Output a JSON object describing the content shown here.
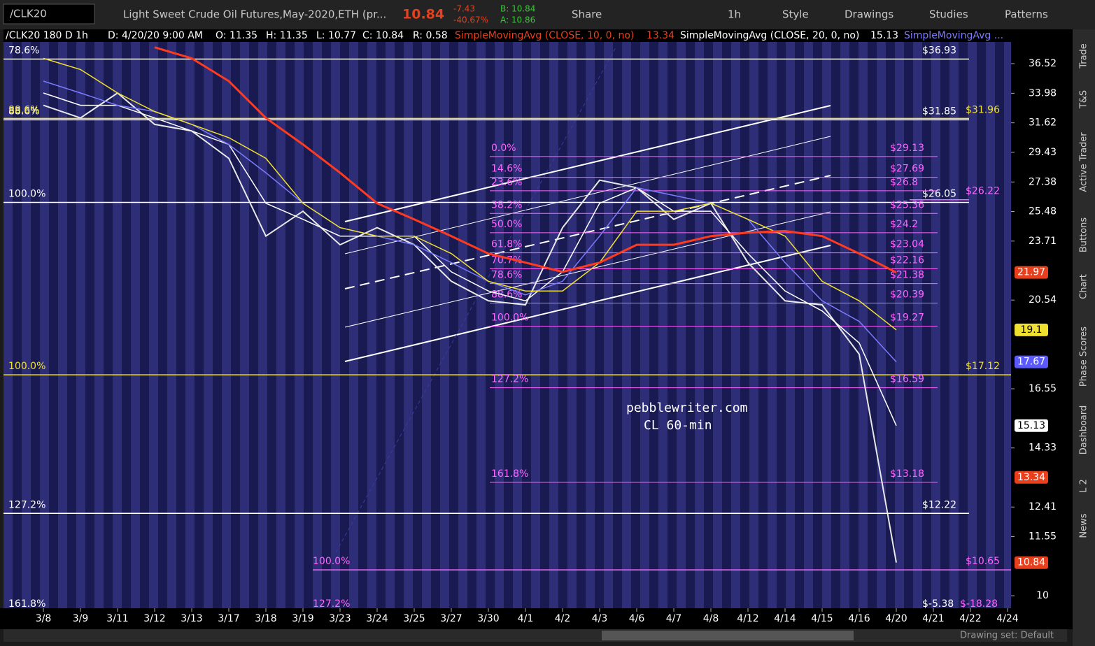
{
  "toolbar": {
    "symbol": "/CLK20",
    "description": "Light Sweet Crude Oil Futures,May-2020,ETH (pr...",
    "last": "10.84",
    "change": "-7.43",
    "change_pct": "-40.67%",
    "bid": "B: 10.84",
    "ask": "A: 10.86",
    "share": "Share",
    "interval": "1h",
    "style": "Style",
    "drawings": "Drawings",
    "studies": "Studies",
    "patterns": "Patterns"
  },
  "header": {
    "chart": "/CLK20 180 D 1h",
    "date": "D: 4/20/20 9:00 AM",
    "open": "O: 11.35",
    "high": "H: 11.35",
    "low": "L: 10.77",
    "close": "C: 10.84",
    "range": "R: 0.58",
    "study1": "SimpleMovingAvg (CLOSE, 10, 0, no)",
    "study1_value": "13.34",
    "study2": "SimpleMovingAvg (CLOSE, 20, 0, no)",
    "study2_value": "15.13",
    "study3": "SimpleMovingAvg ..."
  },
  "side_tabs": [
    "Trade",
    "T&S",
    "Active Trader",
    "Buttons",
    "Chart",
    "Phase Scores",
    "Dashboard",
    "L 2",
    "News"
  ],
  "watermark": [
    "pebblewriter.com",
    "CL 60-min"
  ],
  "footer": {
    "drawing_set": "Drawing set: Default"
  },
  "chart_data": {
    "type": "line",
    "log": true,
    "ylim": [
      9.7,
      38.5
    ],
    "yticks": [
      36.52,
      33.98,
      31.62,
      29.43,
      27.38,
      25.48,
      23.71,
      20.54,
      16.55,
      14.33,
      12.41,
      11.55,
      10
    ],
    "categories": [
      "3/8",
      "3/9",
      "3/11",
      "3/12",
      "3/13",
      "3/17",
      "3/18",
      "3/19",
      "3/23",
      "3/24",
      "3/25",
      "3/27",
      "3/30",
      "4/1",
      "4/2",
      "4/3",
      "4/6",
      "4/7",
      "4/8",
      "4/12",
      "4/14",
      "4/15",
      "4/16",
      "4/20",
      "4/21",
      "4/22",
      "4/24"
    ],
    "series": [
      {
        "color": "#e8e8e8",
        "values": [
          33,
          32,
          34,
          31.5,
          31,
          29,
          24,
          25.5,
          23.5,
          24.5,
          23.5,
          21.5,
          20.5,
          20.3,
          24.5,
          27.5,
          27,
          25,
          26,
          22.5,
          20.5,
          20.3,
          18,
          10.84,
          null,
          null,
          null
        ]
      },
      {
        "color": "#ffffff",
        "values": [
          34,
          33,
          33,
          32,
          31,
          30,
          26,
          25,
          24,
          24,
          24,
          22,
          21,
          20.5,
          22,
          26,
          27,
          25.5,
          25.5,
          23,
          21,
          20,
          18.5,
          15.13,
          null,
          null,
          null
        ]
      },
      {
        "color": "#7b7bff",
        "values": [
          35,
          34,
          33,
          32.5,
          31.5,
          30,
          28,
          26,
          24.5,
          24,
          23.5,
          22.5,
          21.5,
          20.8,
          21.5,
          24,
          27,
          26.5,
          26,
          25,
          22.5,
          20.5,
          19.5,
          17.67,
          null,
          null,
          null
        ]
      },
      {
        "color": "#f0e030",
        "values": [
          37,
          36,
          34,
          32.5,
          31.5,
          30.5,
          29,
          26,
          24.5,
          24,
          24,
          23,
          21.5,
          21,
          21,
          22.5,
          25.5,
          25.5,
          26,
          25,
          24,
          21.5,
          20.5,
          19.1,
          null,
          null,
          null
        ]
      },
      {
        "color": "#ff3b1f",
        "values": [
          null,
          null,
          null,
          38,
          37,
          35,
          32,
          30,
          28,
          26,
          25,
          24,
          23,
          22.5,
          22,
          22.5,
          23.5,
          23.5,
          24,
          24.2,
          24.3,
          24,
          23,
          21.97,
          null,
          null,
          null
        ]
      }
    ],
    "major_levels": [
      {
        "value": 36.93,
        "pct": "78.6%",
        "label": "$36.93",
        "color": "#ffffff"
      },
      {
        "value": 31.85,
        "pct": "88.6%",
        "label": "$31.85",
        "color": "#ffffff"
      },
      {
        "value": 31.96,
        "pct": "88.6%",
        "label": "$31.96",
        "color": "#f0e030"
      },
      {
        "value": 26.05,
        "pct": "100.0%",
        "label": "$26.05",
        "color": "#ffffff"
      },
      {
        "value": 26.22,
        "label": "$26.22",
        "color": "#ff66ff"
      },
      {
        "value": 17.12,
        "pct": "100.0%",
        "label": "$17.12",
        "color": "#f0e030"
      },
      {
        "value": 12.22,
        "pct": "127.2%",
        "label": "$12.22",
        "color": "#ffffff"
      },
      {
        "value": 10.65,
        "pct": "100.0%",
        "label": "$10.65",
        "color": "#ff66ff"
      }
    ],
    "fib_levels": [
      {
        "value": 29.13,
        "pct": "0.0%",
        "label": "$29.13"
      },
      {
        "value": 27.69,
        "pct": "14.6%",
        "label": "$27.69"
      },
      {
        "value": 26.8,
        "pct": "23.6%",
        "label": "$26.8"
      },
      {
        "value": 25.36,
        "pct": "38.2%",
        "label": "$25.36"
      },
      {
        "value": 24.2,
        "pct": "50.0%",
        "label": "$24.2"
      },
      {
        "value": 23.04,
        "pct": "61.8%",
        "label": "$23.04"
      },
      {
        "value": 22.16,
        "pct": "70.7%",
        "label": "$22.16"
      },
      {
        "value": 21.38,
        "pct": "78.6%",
        "label": "$21.38"
      },
      {
        "value": 20.39,
        "pct": "88.6%",
        "label": "$20.39"
      },
      {
        "value": 19.27,
        "pct": "100.0%",
        "label": "$19.27"
      },
      {
        "value": 16.59,
        "pct": "127.2%",
        "label": "$16.59"
      },
      {
        "value": 13.18,
        "pct": "161.8%",
        "label": "$13.18"
      }
    ],
    "offscale_labels": [
      "161.8%",
      "127.2%",
      "$-5.38",
      "$-18.28"
    ],
    "price_badges": [
      {
        "value": 21.97,
        "color": "#e8401c"
      },
      {
        "value": 19.1,
        "color": "#f0e030"
      },
      {
        "value": 17.67,
        "color": "#5a5aff"
      },
      {
        "value": 15.13,
        "color": "#ffffff"
      },
      {
        "value": 13.34,
        "color": "#e8401c"
      },
      {
        "value": 10.84,
        "color": "#e8401c"
      }
    ]
  }
}
